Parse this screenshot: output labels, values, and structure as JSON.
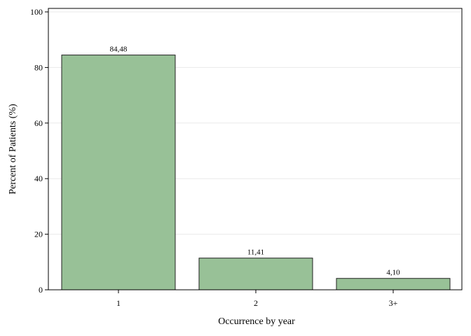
{
  "chart_data": {
    "type": "bar",
    "title": "",
    "xlabel": "Occurrence by year",
    "ylabel": "Percent of Patients (%)",
    "categories": [
      "1",
      "2",
      "3+"
    ],
    "values": [
      84.48,
      11.41,
      4.1
    ],
    "data_labels": [
      "84,48",
      "11,41",
      "4,10"
    ],
    "ylim": [
      0,
      100
    ],
    "yticks": [
      0,
      20,
      40,
      60,
      80,
      100
    ],
    "grid": true,
    "legend": "none",
    "colors": {
      "bar_fill": "#98c197",
      "bar_stroke": "#222222",
      "grid": "#e9e9e9",
      "frame": "#000000"
    }
  }
}
